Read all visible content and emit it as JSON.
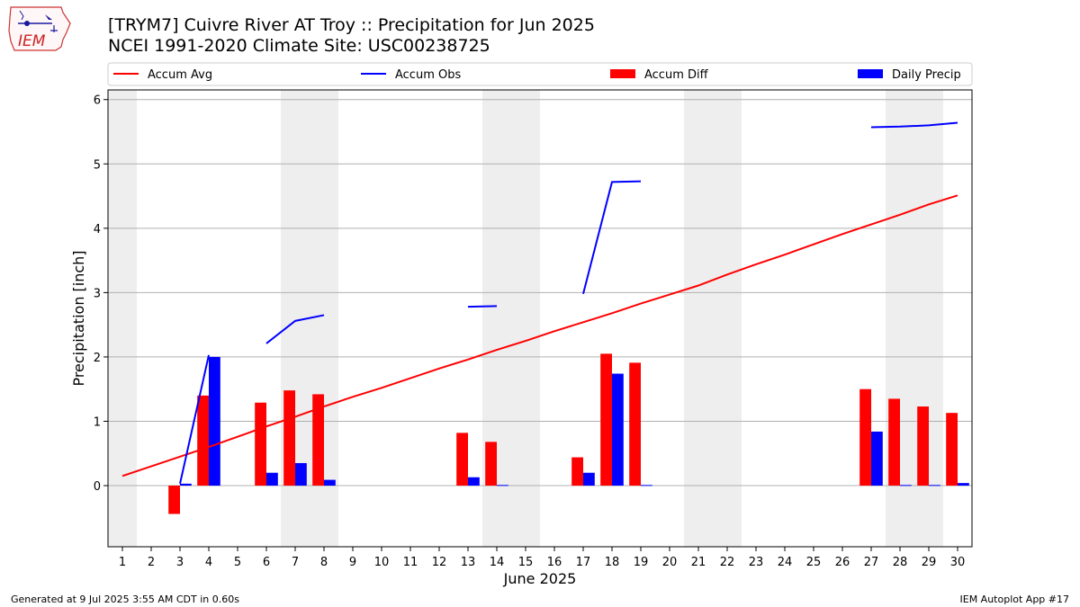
{
  "header": {
    "title_line1": "[TRYM7] Cuivre River  AT Troy :: Precipitation for Jun 2025",
    "title_line2": "NCEI 1991-2020 Climate Site: USC00238725",
    "logo_text": "IEM"
  },
  "footer": {
    "left": "Generated at 9 Jul 2025 3:55 AM CDT in 0.60s",
    "right": "IEM Autoplot App #17"
  },
  "colors": {
    "avg": "#ff0000",
    "obs": "#0000ff",
    "diff": "#ff0000",
    "daily": "#0000ff",
    "weekend": "#eeeeee",
    "grid": "#b0b0b0"
  },
  "chart_data": {
    "type": "bar",
    "xlabel": "June 2025",
    "ylabel": "Precipitation [inch]",
    "xlim": [
      0.5,
      30.5
    ],
    "ylim": [
      -0.95,
      6.15
    ],
    "yticks": [
      0,
      1,
      2,
      3,
      4,
      5,
      6
    ],
    "grid": "horizontal",
    "legend_position": "top",
    "shaded_days": [
      1,
      7,
      8,
      14,
      15,
      21,
      22,
      28,
      29
    ],
    "days": [
      1,
      2,
      3,
      4,
      5,
      6,
      7,
      8,
      9,
      10,
      11,
      12,
      13,
      14,
      15,
      16,
      17,
      18,
      19,
      20,
      21,
      22,
      23,
      24,
      25,
      26,
      27,
      28,
      29,
      30
    ],
    "series": [
      {
        "name": "Accum Avg",
        "type": "line",
        "values": [
          0.15,
          0.3,
          0.45,
          0.6,
          0.76,
          0.92,
          1.07,
          1.23,
          1.38,
          1.52,
          1.67,
          1.82,
          1.96,
          2.11,
          2.25,
          2.4,
          2.54,
          2.68,
          2.83,
          2.97,
          3.11,
          3.28,
          3.44,
          3.59,
          3.75,
          3.91,
          4.06,
          4.21,
          4.37,
          4.51
        ]
      },
      {
        "name": "Accum Obs",
        "type": "line",
        "values": [
          null,
          null,
          0.03,
          2.03,
          null,
          2.21,
          2.56,
          2.65,
          null,
          null,
          null,
          null,
          2.78,
          2.79,
          null,
          null,
          2.98,
          4.72,
          4.73,
          null,
          null,
          null,
          null,
          null,
          null,
          null,
          5.57,
          5.58,
          5.6,
          5.64
        ]
      },
      {
        "name": "Accum Diff",
        "type": "bar",
        "values": [
          null,
          null,
          -0.44,
          1.4,
          null,
          1.29,
          1.48,
          1.42,
          null,
          null,
          null,
          null,
          0.82,
          0.68,
          null,
          null,
          0.44,
          2.05,
          1.91,
          null,
          null,
          null,
          null,
          null,
          null,
          null,
          1.5,
          1.35,
          1.23,
          1.13
        ]
      },
      {
        "name": "Daily Precip",
        "type": "bar",
        "values": [
          null,
          null,
          0.03,
          2.0,
          null,
          0.2,
          0.35,
          0.09,
          null,
          null,
          null,
          null,
          0.13,
          0.01,
          null,
          null,
          0.2,
          1.74,
          0.01,
          null,
          null,
          null,
          null,
          null,
          null,
          null,
          0.84,
          0.01,
          0.01,
          0.04
        ]
      }
    ]
  }
}
